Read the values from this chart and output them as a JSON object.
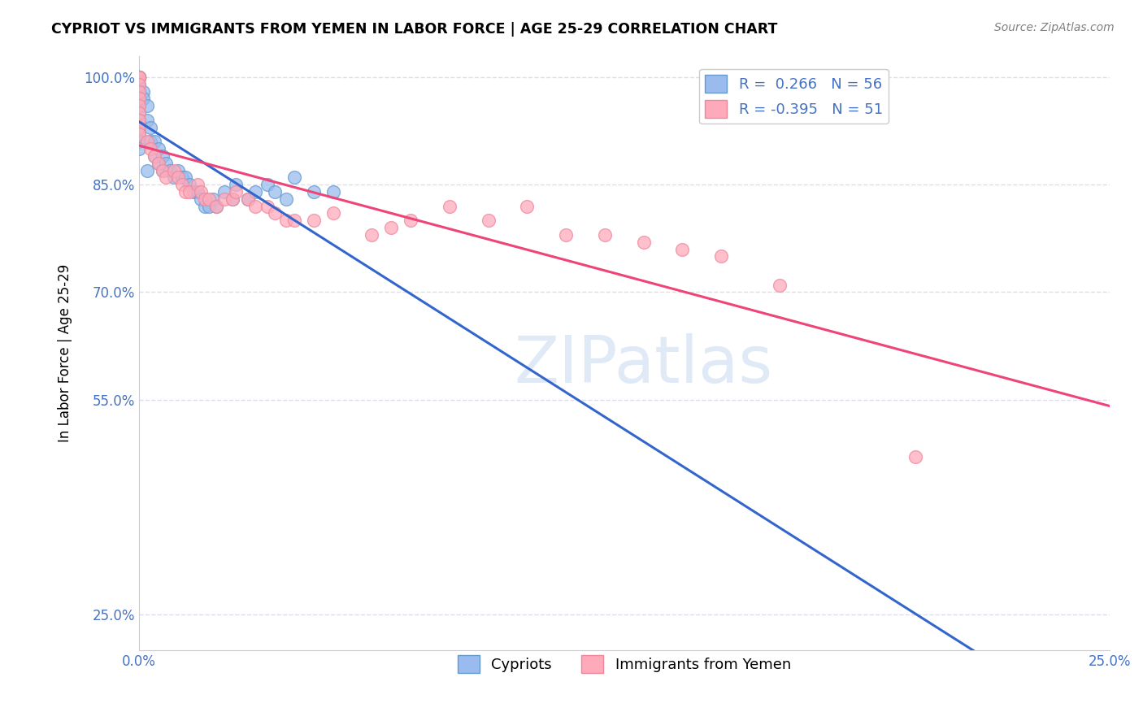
{
  "title": "CYPRIOT VS IMMIGRANTS FROM YEMEN IN LABOR FORCE | AGE 25-29 CORRELATION CHART",
  "source": "Source: ZipAtlas.com",
  "ylabel": "In Labor Force | Age 25-29",
  "xlim": [
    0.0,
    0.25
  ],
  "ylim": [
    0.2,
    1.03
  ],
  "xticks": [
    0.0,
    0.05,
    0.1,
    0.15,
    0.2,
    0.25
  ],
  "xticklabels": [
    "0.0%",
    "",
    "",
    "",
    "",
    "25.0%"
  ],
  "yticks": [
    0.25,
    0.55,
    0.7,
    0.85,
    1.0
  ],
  "yticklabels": [
    "25.0%",
    "55.0%",
    "70.0%",
    "85.0%",
    "100.0%"
  ],
  "tick_color": "#4472c4",
  "cypriot_color": "#99bbee",
  "cypriot_edge": "#6699cc",
  "yemen_color": "#ffaabb",
  "yemen_edge": "#ee8899",
  "blue_line_color": "#3366cc",
  "pink_line_color": "#ee4477",
  "watermark_text": "ZIPatlas",
  "legend_R_cypriot": "0.266",
  "legend_N_cypriot": "56",
  "legend_R_yemen": "-0.395",
  "legend_N_yemen": "51",
  "background_color": "#ffffff",
  "grid_color": "#ddddee",
  "marker_size": 130,
  "cypriot_x": [
    0.0,
    0.0,
    0.0,
    0.0,
    0.0,
    0.0,
    0.0,
    0.0,
    0.0,
    0.0,
    0.0,
    0.0,
    0.0,
    0.0,
    0.0,
    0.0,
    0.0,
    0.0,
    0.001,
    0.001,
    0.002,
    0.002,
    0.002,
    0.003,
    0.003,
    0.004,
    0.004,
    0.005,
    0.005,
    0.006,
    0.006,
    0.007,
    0.008,
    0.009,
    0.01,
    0.011,
    0.012,
    0.013,
    0.014,
    0.015,
    0.016,
    0.017,
    0.018,
    0.019,
    0.02,
    0.022,
    0.024,
    0.025,
    0.028,
    0.03,
    0.033,
    0.035,
    0.038,
    0.04,
    0.045,
    0.05
  ],
  "cypriot_y": [
    1.0,
    1.0,
    1.0,
    1.0,
    1.0,
    1.0,
    1.0,
    1.0,
    0.99,
    0.98,
    0.97,
    0.96,
    0.95,
    0.94,
    0.93,
    0.92,
    0.91,
    0.9,
    0.98,
    0.97,
    0.96,
    0.94,
    0.87,
    0.93,
    0.91,
    0.91,
    0.89,
    0.9,
    0.88,
    0.89,
    0.87,
    0.88,
    0.87,
    0.86,
    0.87,
    0.86,
    0.86,
    0.85,
    0.84,
    0.84,
    0.83,
    0.82,
    0.82,
    0.83,
    0.82,
    0.84,
    0.83,
    0.85,
    0.83,
    0.84,
    0.85,
    0.84,
    0.83,
    0.86,
    0.84,
    0.84
  ],
  "yemen_x": [
    0.0,
    0.0,
    0.0,
    0.0,
    0.0,
    0.0,
    0.0,
    0.0,
    0.0,
    0.0,
    0.0,
    0.002,
    0.003,
    0.004,
    0.005,
    0.006,
    0.007,
    0.009,
    0.01,
    0.011,
    0.012,
    0.013,
    0.015,
    0.016,
    0.017,
    0.018,
    0.02,
    0.022,
    0.024,
    0.025,
    0.028,
    0.03,
    0.033,
    0.035,
    0.038,
    0.04,
    0.045,
    0.05,
    0.06,
    0.065,
    0.07,
    0.08,
    0.09,
    0.1,
    0.11,
    0.12,
    0.13,
    0.14,
    0.15,
    0.165,
    0.2
  ],
  "yemen_y": [
    1.0,
    1.0,
    1.0,
    0.99,
    0.98,
    0.97,
    0.96,
    0.95,
    0.94,
    0.93,
    0.92,
    0.91,
    0.9,
    0.89,
    0.88,
    0.87,
    0.86,
    0.87,
    0.86,
    0.85,
    0.84,
    0.84,
    0.85,
    0.84,
    0.83,
    0.83,
    0.82,
    0.83,
    0.83,
    0.84,
    0.83,
    0.82,
    0.82,
    0.81,
    0.8,
    0.8,
    0.8,
    0.81,
    0.78,
    0.79,
    0.8,
    0.82,
    0.8,
    0.82,
    0.78,
    0.78,
    0.77,
    0.76,
    0.75,
    0.71,
    0.47
  ]
}
